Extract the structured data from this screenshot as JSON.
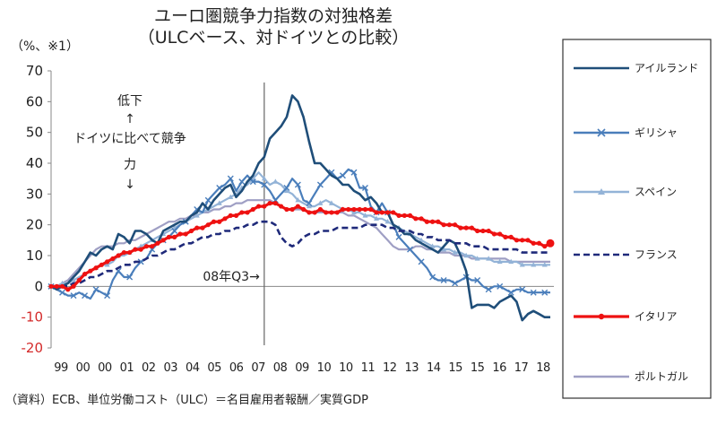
{
  "title_line1": "ユーロ圏競争力指数の対独格差",
  "title_line2": "（ULCベース、対ドイツとの比較）",
  "unit": "（%、※1）",
  "source_text": "（資料）ECB、単位労働コスト（ULC）＝名目雇用者報酬／実質GDP",
  "annotation_text": {
    "line1": "低下",
    "arrow_up": "↑",
    "line2": "ドイツに比べて競争",
    "line3": "力",
    "arrow_down": "↓"
  },
  "vline_label": "08年Q3→",
  "colors": {
    "ireland": "#1f4e79",
    "greece": "#4a7ebb",
    "spain": "#93b3d7",
    "france": "#1f2a7a",
    "italy": "#ee1111",
    "portugal": "#9f9fc4",
    "negative_tick": "#d42a2a"
  },
  "chart_data": {
    "type": "line",
    "title": "ユーロ圏競争力指数の対独格差（ULCベース、対ドイツとの比較）",
    "ylabel": "（%、※1）",
    "ylim": [
      -20,
      70
    ],
    "yticks": [
      70,
      60,
      50,
      40,
      30,
      20,
      10,
      0,
      -10,
      -20
    ],
    "xlabels": [
      "99",
      "00",
      "00",
      "01",
      "02",
      "03",
      "04",
      "05",
      "06",
      "07",
      "08",
      "09",
      "10",
      "10",
      "11",
      "12",
      "13",
      "14",
      "15",
      "15",
      "16",
      "17",
      "18"
    ],
    "grid": false,
    "legend_position": "right",
    "x_note": "quarterly, 1999Q1–2018Q4",
    "series": [
      {
        "name": "アイルランド",
        "key": "ireland",
        "style": "solid",
        "values": [
          0,
          -1,
          0,
          1,
          3,
          5,
          8,
          11,
          10,
          12,
          13,
          12,
          17,
          16,
          14,
          18,
          18,
          17,
          15,
          14,
          18,
          19,
          20,
          21,
          21,
          23,
          24,
          27,
          25,
          28,
          30,
          32,
          33,
          29,
          31,
          34,
          36,
          40,
          42,
          48,
          50,
          52,
          55,
          62,
          60,
          55,
          47,
          40,
          40,
          38,
          36,
          35,
          33,
          33,
          31,
          30,
          28,
          29,
          27,
          24,
          24,
          20,
          19,
          17,
          17,
          15,
          14,
          13,
          12,
          11,
          13,
          15,
          14,
          10,
          5,
          -7,
          -6,
          -6,
          -6,
          -7,
          -5,
          -4,
          -3,
          -5,
          -11,
          -9,
          -8,
          -9,
          -10,
          -10
        ]
      },
      {
        "name": "ギリシャ",
        "key": "greece",
        "style": "solid-x",
        "values": [
          0,
          -1,
          -2,
          -3,
          -3,
          -2,
          -3,
          -4,
          -1,
          -2,
          -3,
          2,
          5,
          3,
          3,
          6,
          8,
          9,
          12,
          14,
          15,
          16,
          18,
          20,
          21,
          23,
          25,
          24,
          28,
          30,
          32,
          33,
          35,
          31,
          34,
          36,
          34,
          34,
          33,
          31,
          28,
          30,
          32,
          35,
          33,
          28,
          27,
          30,
          33,
          35,
          37,
          35,
          36,
          38,
          37,
          32,
          32,
          26,
          24,
          27,
          24,
          20,
          16,
          14,
          12,
          10,
          8,
          6,
          3,
          2,
          2,
          2,
          1,
          2,
          3,
          2,
          2,
          0,
          -1,
          0,
          0,
          -1,
          -2,
          -1,
          -1,
          -2,
          -2,
          -2,
          -2,
          -2
        ]
      },
      {
        "name": "スペイン",
        "key": "spain",
        "style": "solid-triangle",
        "values": [
          0,
          0,
          1,
          1,
          2,
          3,
          4,
          5,
          6,
          7,
          7,
          8,
          10,
          10,
          11,
          12,
          13,
          14,
          15,
          16,
          17,
          18,
          19,
          20,
          21,
          22,
          23,
          24,
          25,
          26,
          27,
          28,
          29,
          30,
          32,
          33,
          35,
          37,
          35,
          33,
          34,
          33,
          31,
          30,
          28,
          27,
          26,
          26,
          27,
          28,
          27,
          26,
          25,
          25,
          24,
          24,
          23,
          23,
          22,
          22,
          21,
          20,
          19,
          18,
          17,
          16,
          15,
          14,
          13,
          13,
          12,
          12,
          11,
          11,
          10,
          10,
          9,
          9,
          9,
          8,
          8,
          8,
          8,
          8,
          7,
          7,
          7,
          7,
          7,
          7
        ]
      },
      {
        "name": "フランス",
        "key": "france",
        "style": "dashed",
        "values": [
          0,
          0,
          0,
          0,
          1,
          1,
          2,
          3,
          3,
          4,
          5,
          5,
          6,
          7,
          7,
          8,
          8,
          9,
          10,
          10,
          11,
          12,
          12,
          13,
          14,
          14,
          15,
          16,
          16,
          17,
          17,
          18,
          18,
          19,
          19,
          20,
          20,
          21,
          21,
          21,
          20,
          16,
          14,
          13,
          14,
          16,
          17,
          17,
          18,
          18,
          18,
          19,
          19,
          19,
          19,
          19,
          20,
          20,
          20,
          20,
          19,
          19,
          18,
          18,
          18,
          17,
          17,
          16,
          16,
          15,
          15,
          15,
          14,
          14,
          14,
          13,
          13,
          13,
          12,
          12,
          12,
          12,
          12,
          12,
          11,
          11,
          11,
          11,
          11,
          11
        ]
      },
      {
        "name": "イタリア",
        "key": "italy",
        "style": "solid-dot",
        "values": [
          0,
          0,
          0,
          -1,
          0,
          2,
          4,
          5,
          6,
          7,
          8,
          9,
          10,
          11,
          11,
          12,
          12,
          13,
          13,
          14,
          15,
          16,
          16,
          17,
          17,
          18,
          19,
          19,
          20,
          21,
          21,
          22,
          23,
          23,
          24,
          24,
          25,
          26,
          26,
          27,
          27,
          26,
          25,
          25,
          26,
          25,
          24,
          24,
          25,
          24,
          24,
          24,
          25,
          25,
          25,
          25,
          25,
          25,
          24,
          24,
          24,
          24,
          23,
          23,
          23,
          22,
          22,
          21,
          21,
          21,
          20,
          20,
          20,
          19,
          19,
          19,
          18,
          18,
          18,
          17,
          17,
          16,
          16,
          15,
          15,
          15,
          14,
          14,
          13,
          14
        ]
      },
      {
        "name": "ポルトガル",
        "key": "portugal",
        "style": "solid",
        "values": [
          0,
          0,
          1,
          2,
          4,
          6,
          8,
          10,
          12,
          13,
          13,
          13,
          14,
          14,
          15,
          15,
          16,
          17,
          18,
          19,
          20,
          21,
          21,
          22,
          22,
          23,
          23,
          24,
          24,
          25,
          25,
          26,
          26,
          27,
          27,
          28,
          28,
          28,
          28,
          28,
          27,
          26,
          25,
          25,
          25,
          25,
          24,
          24,
          24,
          24,
          24,
          24,
          24,
          23,
          23,
          22,
          21,
          20,
          19,
          17,
          15,
          13,
          12,
          12,
          12,
          13,
          13,
          12,
          12,
          11,
          11,
          11,
          10,
          10,
          10,
          9,
          9,
          9,
          9,
          9,
          9,
          9,
          8,
          8,
          8,
          8,
          8,
          8,
          8,
          8
        ]
      }
    ]
  }
}
